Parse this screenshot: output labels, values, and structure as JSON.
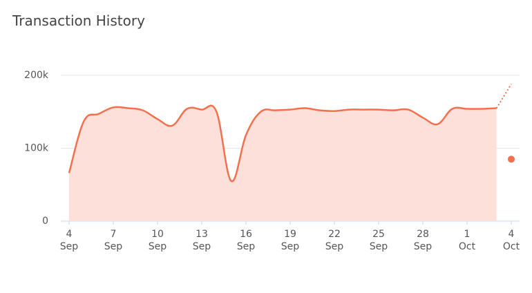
{
  "chart_data": {
    "type": "line",
    "title": "Transaction History",
    "categories": [
      "4 Sep",
      null,
      null,
      "7 Sep",
      null,
      null,
      "10 Sep",
      null,
      null,
      "13 Sep",
      null,
      null,
      "16 Sep",
      null,
      null,
      "19 Sep",
      null,
      null,
      "22 Sep",
      null,
      null,
      "25 Sep",
      null,
      null,
      "28 Sep",
      null,
      null,
      "1 Oct",
      null,
      null,
      "4 Oct"
    ],
    "series": [
      {
        "color": "#f3704d",
        "style": "solid",
        "fill": "#fde0da",
        "values": [
          66000,
          137000,
          147000,
          156000,
          155000,
          152000,
          140000,
          131000,
          154000,
          153000,
          150000,
          55000,
          118000,
          150000,
          152000,
          153000,
          155000,
          152000,
          151000,
          153000,
          153000,
          153000,
          152000,
          153000,
          142000,
          133000,
          154000,
          154000,
          154000,
          155000,
          null
        ]
      },
      {
        "color": "#f3704d",
        "style": "dotted",
        "values": [
          null,
          null,
          null,
          null,
          null,
          null,
          null,
          null,
          null,
          null,
          null,
          null,
          null,
          null,
          null,
          null,
          null,
          null,
          null,
          null,
          null,
          null,
          null,
          null,
          null,
          null,
          null,
          null,
          null,
          155000,
          188000
        ]
      },
      {
        "color": "#f3704d",
        "style": "point",
        "values": [
          null,
          null,
          null,
          null,
          null,
          null,
          null,
          null,
          null,
          null,
          null,
          null,
          null,
          null,
          null,
          null,
          null,
          null,
          null,
          null,
          null,
          null,
          null,
          null,
          null,
          null,
          null,
          null,
          null,
          null,
          85000
        ]
      }
    ],
    "ylim": [
      0,
      200000
    ],
    "yticks": [
      0,
      {
        "value": 100000,
        "label": "100k"
      },
      {
        "value": 200000,
        "label": "200k"
      }
    ],
    "grid": true
  }
}
